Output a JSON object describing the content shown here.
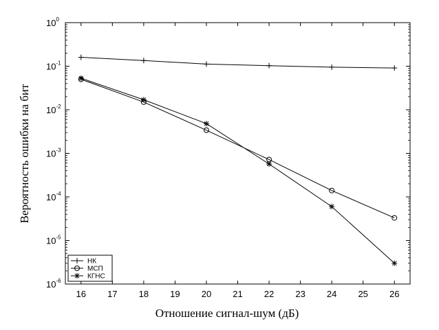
{
  "chart_data": {
    "type": "line",
    "yscale": "log",
    "xlabel": "Отношение сигнал-шум (дБ)",
    "ylabel": "Вероятность ошибки на бит",
    "xlim": [
      15.5,
      26.5
    ],
    "ylim": [
      1e-06,
      1
    ],
    "xticks": [
      16,
      17,
      18,
      19,
      20,
      21,
      22,
      23,
      24,
      25,
      26
    ],
    "yticks": [
      {
        "value": 1e-06,
        "base": "10",
        "exp": "-6"
      },
      {
        "value": 1e-05,
        "base": "10",
        "exp": "-5"
      },
      {
        "value": 0.0001,
        "base": "10",
        "exp": "-4"
      },
      {
        "value": 0.001,
        "base": "10",
        "exp": "-3"
      },
      {
        "value": 0.01,
        "base": "10",
        "exp": "-2"
      },
      {
        "value": 0.1,
        "base": "10",
        "exp": "-1"
      },
      {
        "value": 1,
        "base": "10",
        "exp": "0"
      }
    ],
    "legend_position": "bottom-left",
    "grid": false,
    "series": [
      {
        "name": "НК",
        "marker": "plus",
        "x": [
          16,
          18,
          20,
          22,
          24,
          26
        ],
        "y": [
          0.16,
          0.135,
          0.112,
          0.103,
          0.095,
          0.091
        ]
      },
      {
        "name": "МСП",
        "marker": "circle",
        "x": [
          16,
          18,
          20,
          22,
          24,
          26
        ],
        "y": [
          0.05,
          0.015,
          0.0034,
          0.00072,
          0.00014,
          3.3e-05
        ]
      },
      {
        "name": "КГНС",
        "marker": "star",
        "x": [
          16,
          18,
          20,
          22,
          24,
          26
        ],
        "y": [
          0.053,
          0.017,
          0.0048,
          0.00057,
          6e-05,
          3e-06
        ]
      }
    ]
  }
}
